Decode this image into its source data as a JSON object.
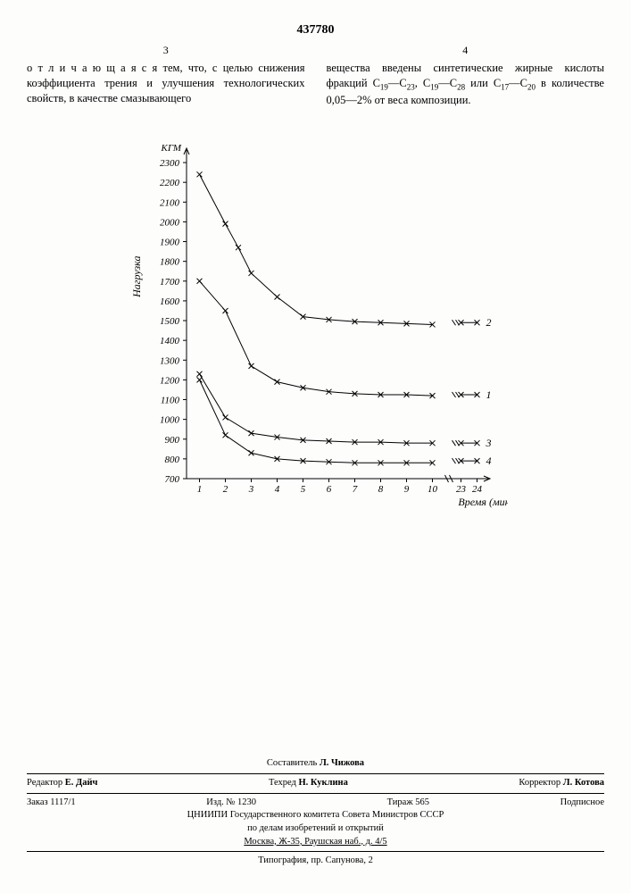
{
  "doc_number": "437780",
  "left_col_num": "3",
  "right_col_num": "4",
  "left_text": "о т л и ч а ю щ а я с я тем, что, с целью снижения коэффициента трения и улучшения технологических свойств, в качестве смазывающего",
  "right_text_a": "вещества введены синтетические жирные кислоты фракций C",
  "right_text_b": "—C",
  "right_text_c": ", C",
  "right_text_d": "—C",
  "right_text_e": " или C",
  "right_text_f": "—C",
  "right_text_g": " в количестве 0,05—2% от веса композиции.",
  "sub1": "19",
  "sub2": "23",
  "sub3": "19",
  "sub4": "28",
  "sub5": "17",
  "sub6": "20",
  "chart": {
    "type": "line",
    "y_unit": "КГМ",
    "y_label": "Нагрузка",
    "x_label": "Время (мин)",
    "x_ticks": [
      1,
      2,
      3,
      4,
      5,
      6,
      7,
      8,
      9,
      10
    ],
    "x_break_labels": [
      "23",
      "24"
    ],
    "y_ticks": [
      700,
      800,
      900,
      1000,
      1100,
      1200,
      1300,
      1400,
      1500,
      1600,
      1700,
      1800,
      1900,
      2000,
      2100,
      2200,
      2300
    ],
    "xlim": [
      0.5,
      10.5
    ],
    "ylim": [
      700,
      2350
    ],
    "line_color": "#000000",
    "marker": "x",
    "series": [
      {
        "label": "2",
        "pts": [
          [
            1,
            2240
          ],
          [
            2,
            1990
          ],
          [
            2.5,
            1870
          ],
          [
            3,
            1740
          ],
          [
            4,
            1620
          ],
          [
            5,
            1520
          ],
          [
            6,
            1505
          ],
          [
            7,
            1495
          ],
          [
            8,
            1490
          ],
          [
            9,
            1485
          ],
          [
            10,
            1480
          ]
        ],
        "end": [
          [
            23,
            1490
          ],
          [
            24,
            1490
          ]
        ]
      },
      {
        "label": "1",
        "pts": [
          [
            1,
            1700
          ],
          [
            2,
            1550
          ],
          [
            3,
            1270
          ],
          [
            4,
            1190
          ],
          [
            5,
            1160
          ],
          [
            6,
            1140
          ],
          [
            7,
            1130
          ],
          [
            8,
            1125
          ],
          [
            9,
            1125
          ],
          [
            10,
            1120
          ]
        ],
        "end": [
          [
            23,
            1125
          ],
          [
            24,
            1125
          ]
        ]
      },
      {
        "label": "3",
        "pts": [
          [
            1,
            1230
          ],
          [
            2,
            1010
          ],
          [
            3,
            930
          ],
          [
            4,
            910
          ],
          [
            5,
            895
          ],
          [
            6,
            890
          ],
          [
            7,
            885
          ],
          [
            8,
            885
          ],
          [
            9,
            880
          ],
          [
            10,
            880
          ]
        ],
        "end": [
          [
            23,
            880
          ],
          [
            24,
            880
          ]
        ]
      },
      {
        "label": "4",
        "pts": [
          [
            1,
            1200
          ],
          [
            2,
            920
          ],
          [
            3,
            830
          ],
          [
            4,
            800
          ],
          [
            5,
            790
          ],
          [
            6,
            785
          ],
          [
            7,
            780
          ],
          [
            8,
            780
          ],
          [
            9,
            780
          ],
          [
            10,
            780
          ]
        ],
        "end": [
          [
            23,
            790
          ],
          [
            24,
            790
          ]
        ]
      }
    ]
  },
  "compiler_label": "Составитель",
  "compiler": "Л. Чижова",
  "editor_label": "Редактор",
  "editor": "Е. Дайч",
  "tech_label": "Техред",
  "tech": "Н. Куклина",
  "corrector_label": "Корректор",
  "corrector": "Л. Котова",
  "order": "Заказ 1117/1",
  "izd": "Изд. № 1230",
  "tirazh": "Тираж 565",
  "podpis": "Подписное",
  "org1": "ЦНИИПИ Государственного комитета Совета Министров СССР",
  "org2": "по делам изобретений и открытий",
  "addr": "Москва, Ж-35, Раушская наб., д. 4/5",
  "printer": "Типография, пр. Сапунова, 2"
}
